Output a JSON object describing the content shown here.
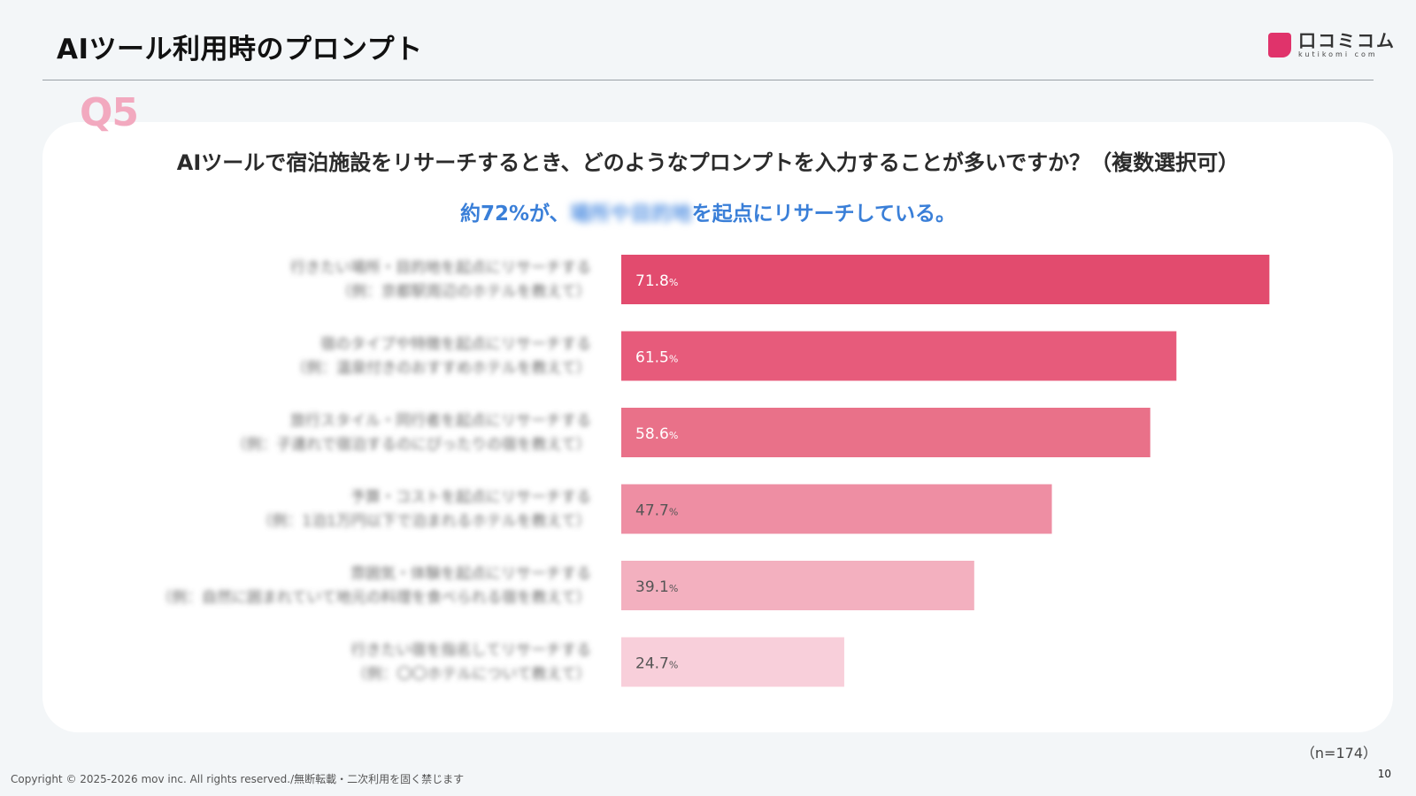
{
  "header": {
    "title": "AIツール利用時のプロンプト",
    "logo_text": "口コミコム",
    "logo_subtext": "kutikomi com",
    "brand_color": "#e0336b"
  },
  "question_label": "Q5",
  "question_text": "AIツールで宿泊施設をリサーチするとき、どのようなプロンプトを入力することが多いですか？（複数選択可）",
  "highlight": {
    "prefix": "約72%が、",
    "blurred": "場所や目的地",
    "suffix": "を起点にリサーチしている。"
  },
  "chart_data": {
    "type": "bar",
    "orientation": "horizontal",
    "categories": [
      "行きたい場所・目的地を起点にリサーチする（例：京都駅周辺のホテルを教えて）",
      "宿のタイプや特徴を起点にリサーチする（例：温泉付きのおすすめホテルを教えて）",
      "旅行スタイル・同行者を起点にリサーチする（例：子連れで宿泊するのにぴったりの宿を教えて）",
      "予算・コストを起点にリサーチする（例：1泊1万円以下で泊まれるホテルを教えて）",
      "雰囲気・体験を起点にリサーチする（例：自然に囲まれていて地元の料理を食べられる宿を教えて）",
      "行きたい宿を指名してリサーチする（例：〇〇ホテルについて教えて）"
    ],
    "values": [
      71.8,
      61.5,
      58.6,
      47.7,
      39.1,
      24.7
    ],
    "value_labels": [
      "71.8",
      "61.5",
      "58.6",
      "47.7",
      "39.1",
      "24.7"
    ],
    "unit": "%",
    "xlim": [
      0,
      100
    ],
    "bar_colors": [
      "#e24b6e",
      "#e75b7b",
      "#e97189",
      "#ee8ea3",
      "#f3b0bf",
      "#f8cfda"
    ],
    "label_colors": [
      "#ffffff",
      "#ffffff",
      "#ffffff",
      "#555555",
      "#555555",
      "#555555"
    ],
    "category_labels_blurred": true,
    "grid": false,
    "legend": "none"
  },
  "sample_note": "（n=174）",
  "footer": {
    "copyright": "Copyright © 2025-2026 mov inc. All rights reserved./無断転載・二次利用を固く禁じます",
    "page_number": "10"
  }
}
